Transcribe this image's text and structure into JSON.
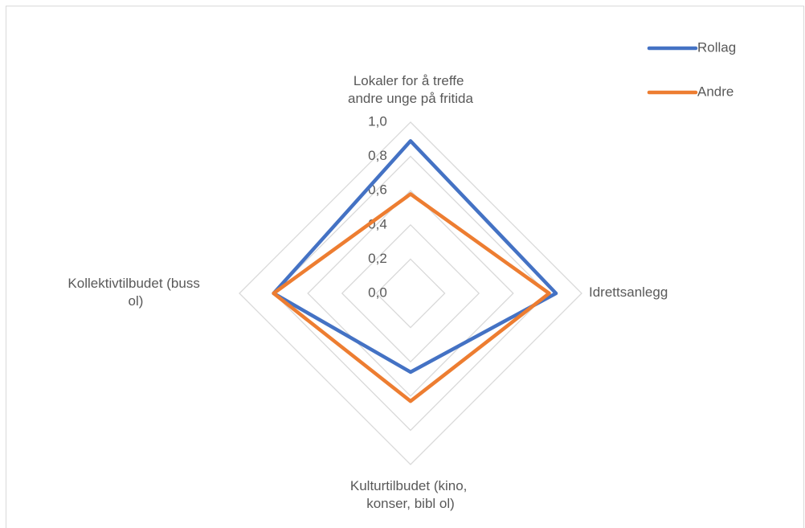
{
  "chart_data": {
    "type": "radar",
    "categories": [
      "Lokaler for å treffe andre unge på fritida",
      "Idrettsanlegg",
      "Kulturtilbudet (kino, konser, bibl ol)",
      "Kollektivtilbudet (buss ol)"
    ],
    "series": [
      {
        "name": "Rollag",
        "color": "#4472c4",
        "values": [
          0.89,
          0.85,
          0.46,
          0.8
        ]
      },
      {
        "name": "Andre",
        "color": "#ed7d31",
        "values": [
          0.58,
          0.81,
          0.63,
          0.8
        ]
      }
    ],
    "rlim": [
      0,
      1
    ],
    "rticks": [
      {
        "value": 0,
        "label": "0,0"
      },
      {
        "value": 0.2,
        "label": "0,2"
      },
      {
        "value": 0.4,
        "label": "0,4"
      },
      {
        "value": 0.6,
        "label": "0,6"
      },
      {
        "value": 0.8,
        "label": "0,8"
      },
      {
        "value": 1,
        "label": "1,0"
      }
    ],
    "grid": true,
    "legend": "top-right"
  }
}
